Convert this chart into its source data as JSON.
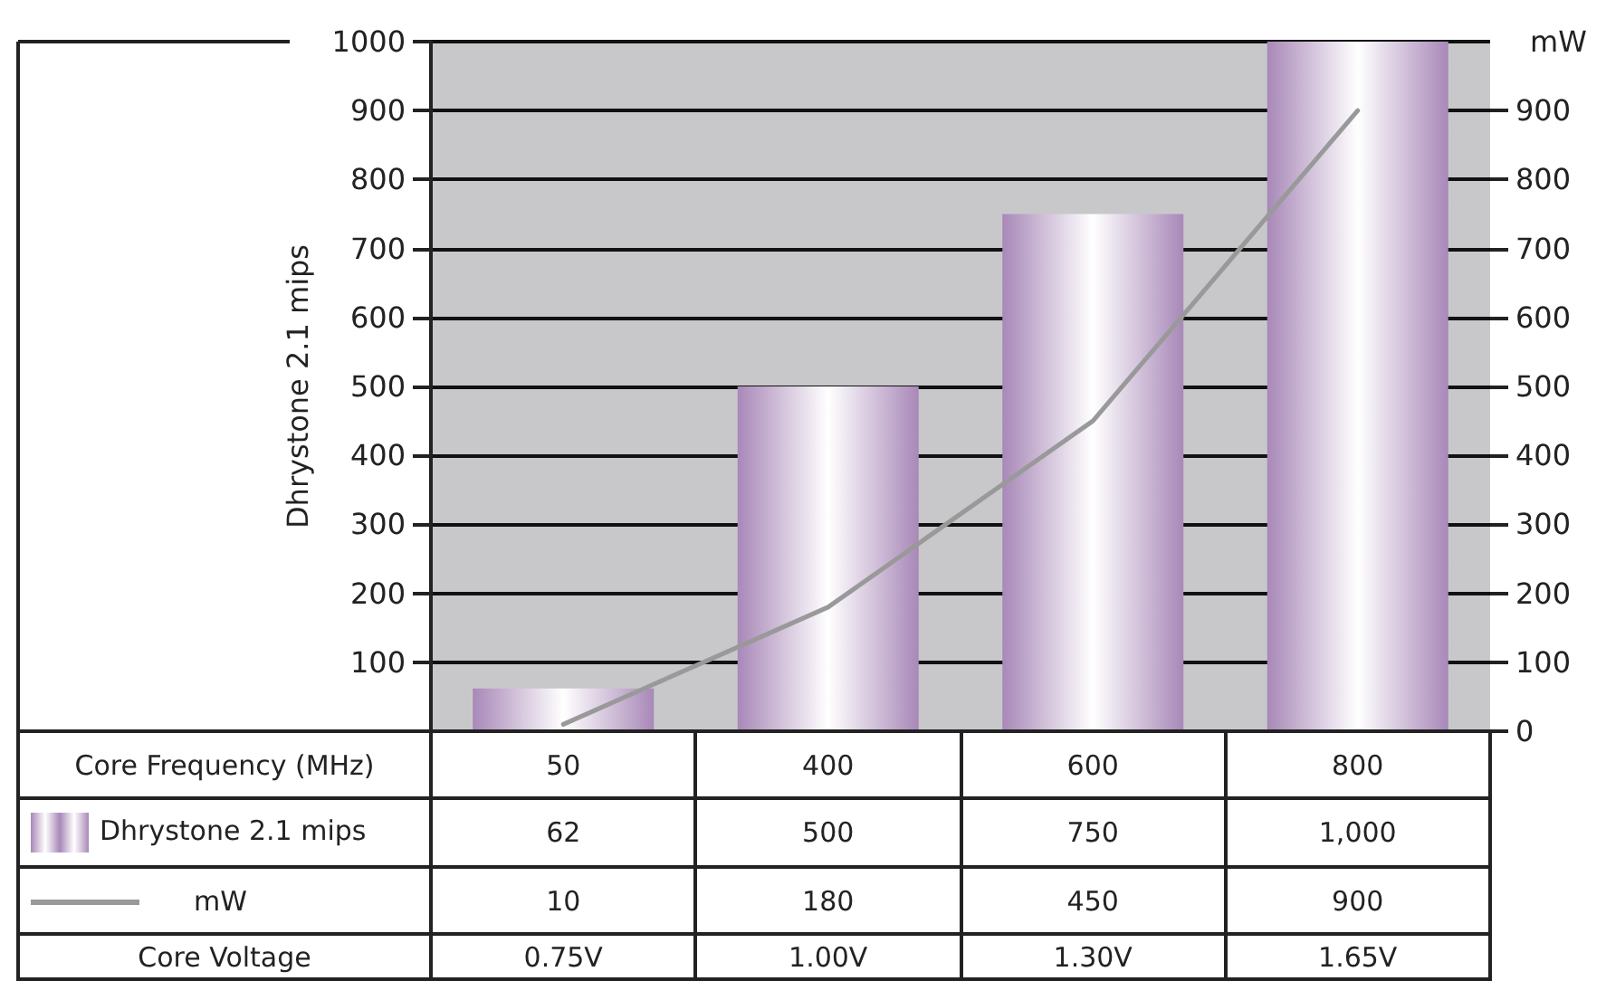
{
  "chart_data": {
    "type": "bar",
    "xlabel": "Core Frequency (MHz)",
    "ylabel": "Dhrystone 2.1 mips",
    "y2label": "mW",
    "categories": [
      "50",
      "400",
      "600",
      "800"
    ],
    "series": [
      {
        "name": "Dhrystone 2.1 mips",
        "color": "#a888b8",
        "values": [
          62,
          500,
          750,
          1000
        ],
        "value_labels": [
          "62",
          "500",
          "750",
          "1,000"
        ]
      },
      {
        "name": "mW",
        "type": "line",
        "axis": "y2",
        "color": "#999999",
        "values": [
          10,
          180,
          450,
          900
        ],
        "value_labels": [
          "10",
          "180",
          "450",
          "900"
        ]
      }
    ],
    "ylim": [
      0,
      1000
    ],
    "yticks": [
      100,
      200,
      300,
      400,
      500,
      600,
      700,
      800,
      900,
      1000
    ],
    "y2lim": [
      0,
      1000
    ],
    "y2ticks": [
      0,
      100,
      200,
      300,
      400,
      500,
      600,
      700,
      800,
      900
    ],
    "annotations": [
      "Core Voltage",
      "0.75V",
      "1.00V",
      "1.30V",
      "1.65V"
    ],
    "grid": "y",
    "legend": "bottom left",
    "marker": "none",
    "line_style": "solid"
  }
}
